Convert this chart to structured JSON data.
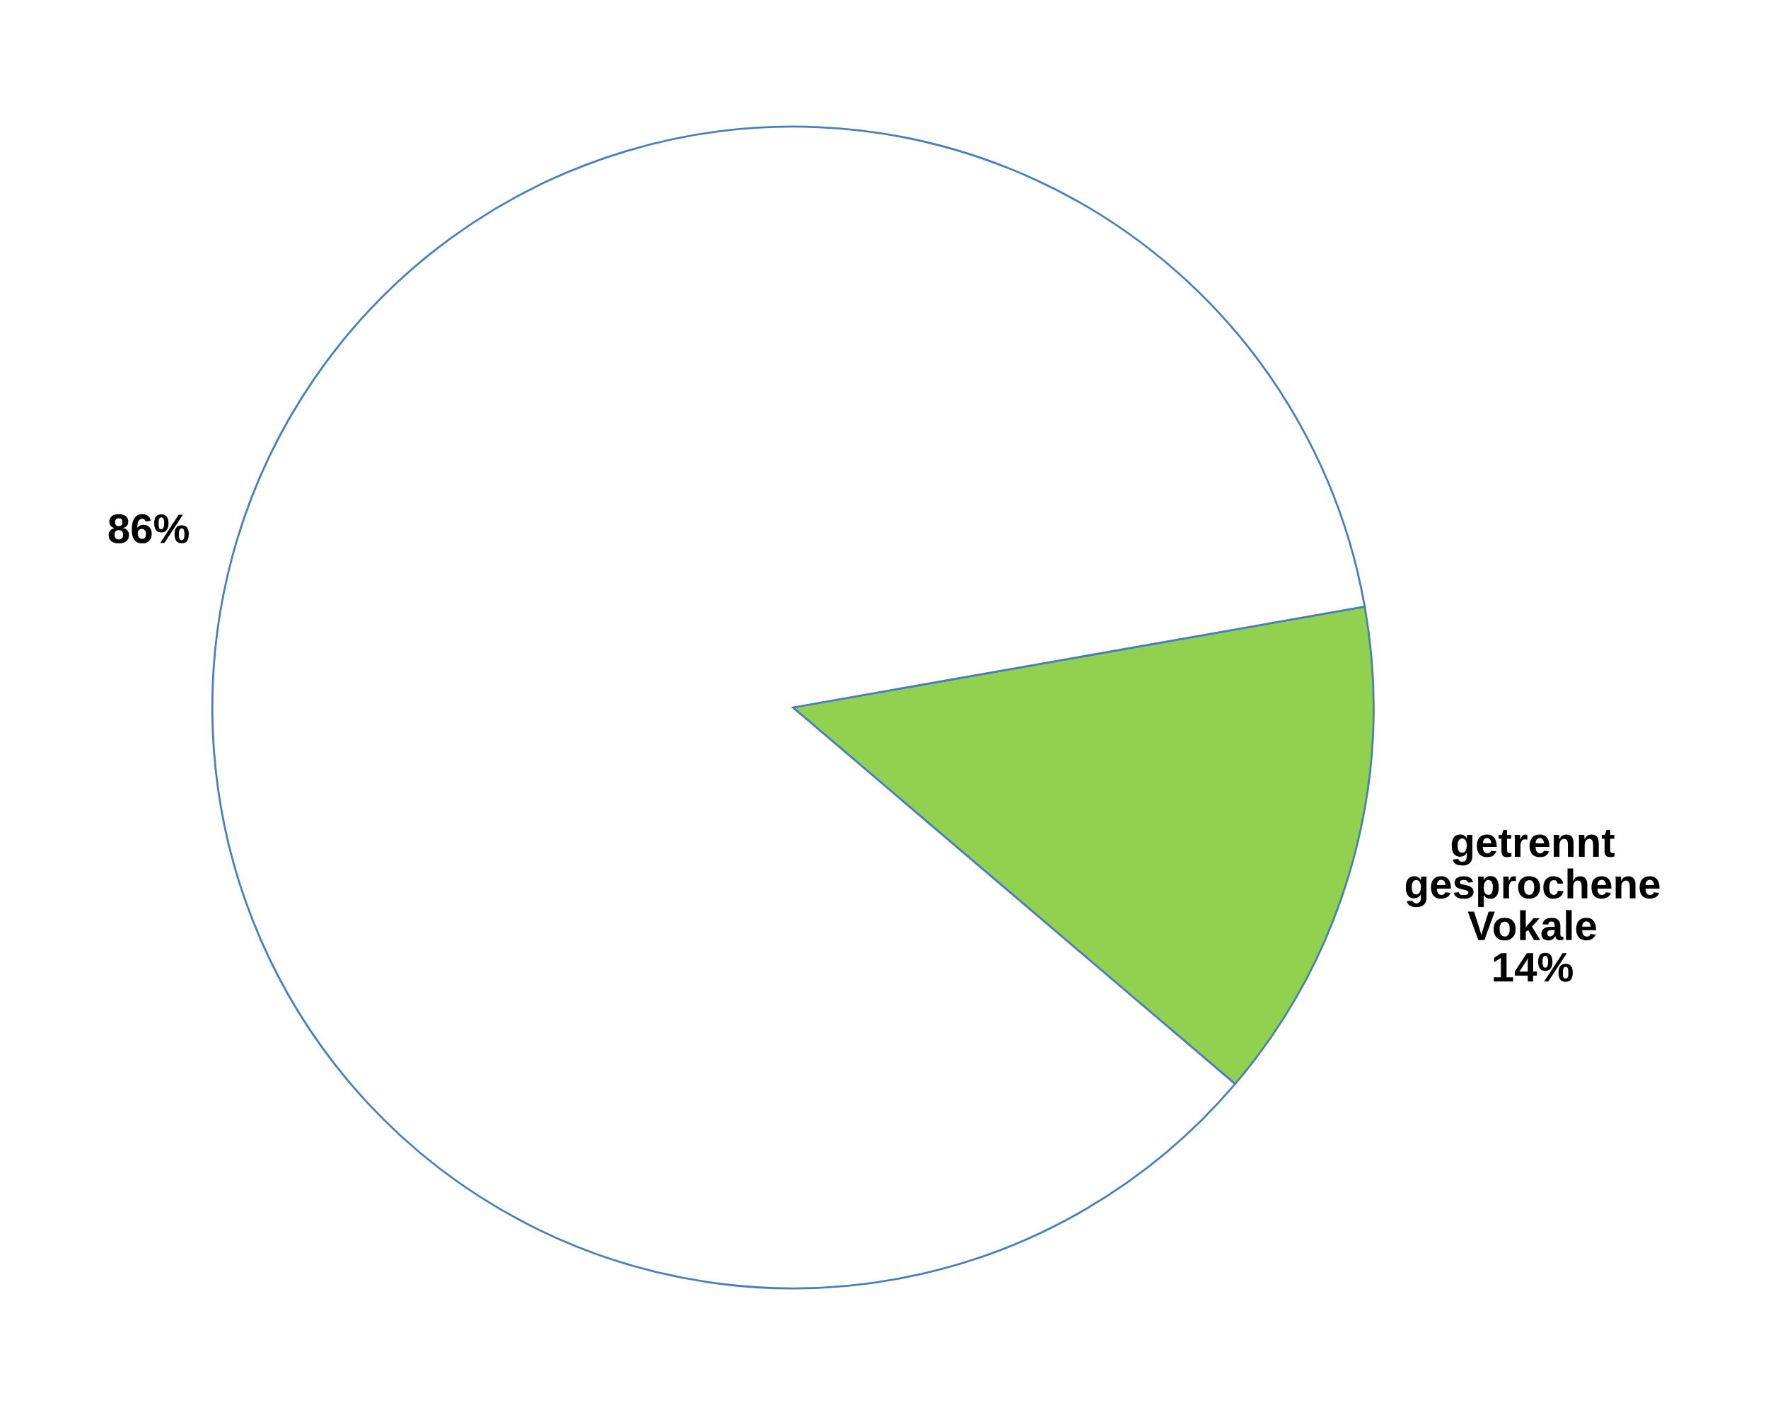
{
  "chart_data": {
    "type": "pie",
    "categories": [
      "getrennt gesprochene Vokale",
      null
    ],
    "values": [
      14,
      86
    ],
    "colors": [
      "#92d050",
      "#ffffff"
    ],
    "value_labels": [
      "14%",
      "86%"
    ],
    "legend": false
  }
}
